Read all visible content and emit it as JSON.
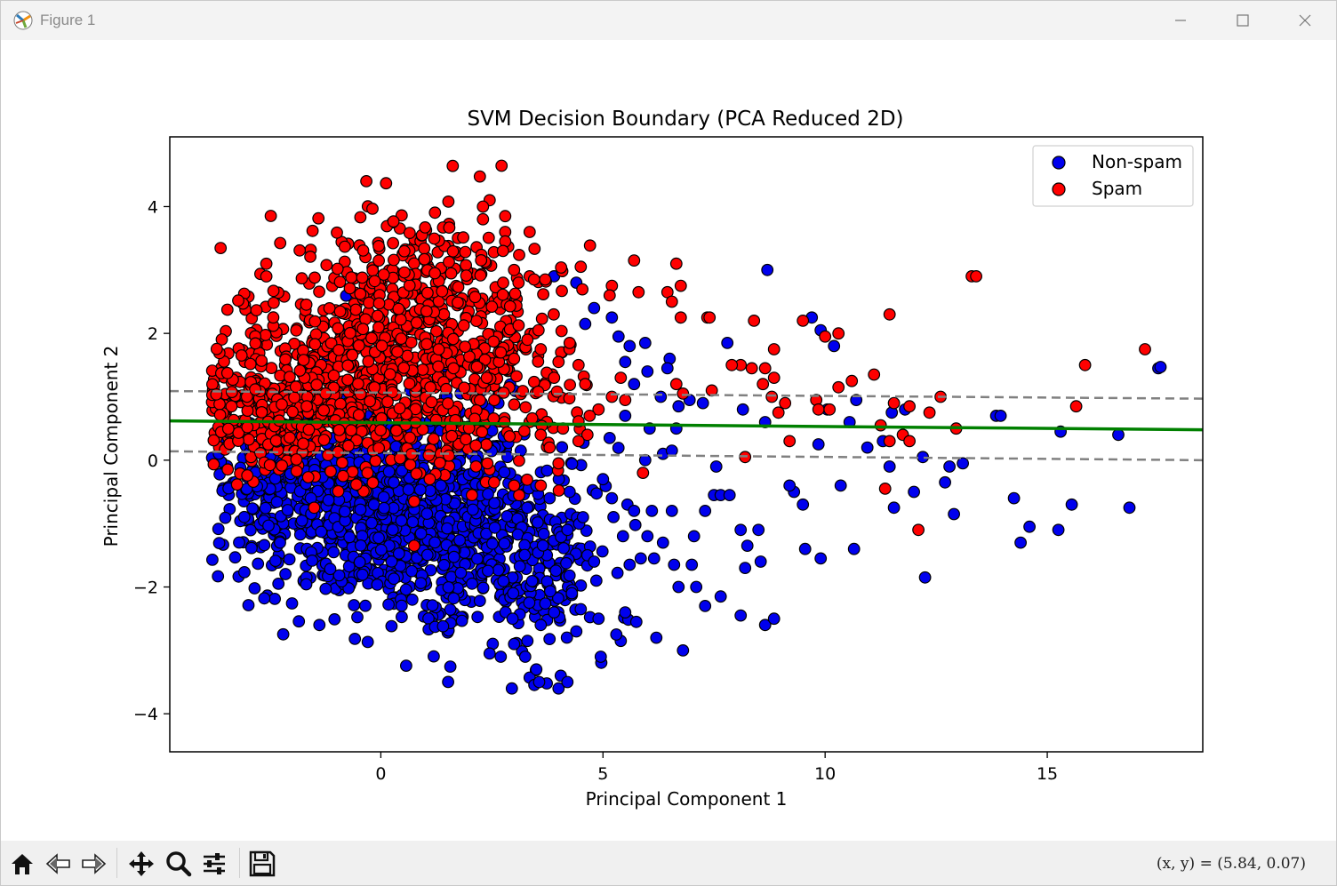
{
  "window": {
    "title": "Figure 1"
  },
  "toolbar": {
    "tools": [
      "home-icon",
      "back-arrow-icon",
      "forward-arrow-icon",
      "pan-icon",
      "zoom-icon",
      "configure-subplots-icon",
      "save-icon"
    ],
    "coords": "(x, y) = (5.84, 0.07)"
  },
  "chart_data": {
    "type": "scatter",
    "title": "SVM Decision Boundary (PCA Reduced 2D)",
    "xlabel": "Principal Component 1",
    "ylabel": "Principal Component 2",
    "xlim": [
      -4.75,
      18.5
    ],
    "ylim": [
      -4.6,
      5.1
    ],
    "xticks": [
      0,
      5,
      10,
      15
    ],
    "yticks": [
      -4,
      -2,
      0,
      2,
      4
    ],
    "grid": false,
    "legend_position": "top-right",
    "colors": {
      "non_spam": "#0000ee",
      "spam": "#ff0000",
      "boundary": "#008000",
      "margin": "#808080"
    },
    "decision_boundary": {
      "x": [
        -4.75,
        18.5
      ],
      "y": [
        0.62,
        0.48
      ]
    },
    "margins": [
      {
        "x": [
          -4.75,
          18.5
        ],
        "y": [
          1.09,
          0.97
        ]
      },
      {
        "x": [
          -4.75,
          18.5
        ],
        "y": [
          0.14,
          0.0
        ]
      }
    ],
    "series": [
      {
        "name": "Non-spam",
        "color": "#0000ee",
        "points": [
          [
            8.7,
            3.0
          ],
          [
            7.8,
            1.85
          ],
          [
            9.7,
            2.25
          ],
          [
            9.9,
            2.05
          ],
          [
            10.2,
            1.8
          ],
          [
            5.5,
            1.55
          ],
          [
            5.95,
            1.85
          ],
          [
            6.0,
            1.4
          ],
          [
            6.5,
            1.6
          ],
          [
            6.45,
            1.45
          ],
          [
            5.7,
            1.2
          ],
          [
            6.3,
            1.0
          ],
          [
            6.7,
            0.85
          ],
          [
            7.25,
            0.9
          ],
          [
            8.15,
            0.8
          ],
          [
            8.65,
            0.6
          ],
          [
            9.85,
            0.25
          ],
          [
            10.05,
            0.8
          ],
          [
            10.55,
            0.6
          ],
          [
            10.7,
            0.95
          ],
          [
            11.5,
            0.75
          ],
          [
            11.8,
            0.8
          ],
          [
            11.45,
            -0.1
          ],
          [
            12.2,
            0.05
          ],
          [
            12.8,
            -0.1
          ],
          [
            12.7,
            -0.35
          ],
          [
            13.1,
            -0.05
          ],
          [
            12.0,
            -0.5
          ],
          [
            12.9,
            -0.85
          ],
          [
            14.25,
            -0.6
          ],
          [
            14.6,
            -1.05
          ],
          [
            14.4,
            -1.3
          ],
          [
            15.25,
            -1.1
          ],
          [
            15.55,
            -0.7
          ],
          [
            16.6,
            0.4
          ],
          [
            16.85,
            -0.75
          ],
          [
            13.85,
            0.7
          ],
          [
            13.95,
            0.7
          ],
          [
            15.3,
            0.45
          ],
          [
            17.5,
            1.45
          ],
          [
            17.55,
            1.47
          ],
          [
            12.25,
            -1.85
          ],
          [
            9.3,
            -0.5
          ],
          [
            9.5,
            -0.7
          ],
          [
            9.2,
            -0.4
          ],
          [
            10.35,
            -0.4
          ],
          [
            10.65,
            -1.4
          ],
          [
            9.9,
            -1.55
          ],
          [
            9.55,
            -1.4
          ],
          [
            11.55,
            -0.75
          ],
          [
            7.5,
            -0.55
          ],
          [
            7.65,
            -0.55
          ],
          [
            7.85,
            -0.55
          ],
          [
            8.1,
            -1.1
          ],
          [
            8.5,
            -1.1
          ],
          [
            8.25,
            -1.35
          ],
          [
            8.2,
            -1.7
          ],
          [
            8.55,
            -1.6
          ],
          [
            7.0,
            -1.65
          ],
          [
            6.6,
            -1.65
          ],
          [
            6.15,
            -1.55
          ],
          [
            6.7,
            -2.0
          ],
          [
            7.1,
            -2.0
          ],
          [
            7.65,
            -2.15
          ],
          [
            7.3,
            -2.3
          ],
          [
            8.1,
            -2.45
          ],
          [
            8.65,
            -2.6
          ],
          [
            8.85,
            -2.5
          ],
          [
            6.2,
            -2.8
          ],
          [
            6.8,
            -3.0
          ],
          [
            5.5,
            -2.4
          ],
          [
            5.75,
            -2.55
          ],
          [
            5.4,
            -2.85
          ],
          [
            5.3,
            -2.75
          ],
          [
            4.95,
            -3.1
          ],
          [
            4.9,
            -2.5
          ],
          [
            4.4,
            -2.7
          ],
          [
            4.0,
            -3.6
          ],
          [
            4.05,
            -3.4
          ],
          [
            2.95,
            -3.6
          ],
          [
            3.5,
            -3.3
          ],
          [
            3.25,
            -3.1
          ],
          [
            4.2,
            -3.5
          ],
          [
            2.45,
            -3.05
          ],
          [
            5.0,
            -0.3
          ],
          [
            5.2,
            -0.6
          ],
          [
            5.55,
            -0.7
          ],
          [
            5.7,
            -0.8
          ],
          [
            6.1,
            -0.8
          ],
          [
            6.55,
            -0.8
          ],
          [
            5.15,
            0.35
          ],
          [
            5.5,
            0.7
          ],
          [
            6.05,
            0.5
          ],
          [
            6.65,
            0.5
          ],
          [
            6.95,
            0.95
          ],
          [
            4.8,
            2.4
          ],
          [
            5.2,
            2.25
          ],
          [
            5.35,
            1.95
          ],
          [
            5.6,
            1.8
          ],
          [
            4.6,
            2.15
          ],
          [
            3.9,
            2.9
          ],
          [
            4.4,
            2.8
          ],
          [
            7.55,
            -0.1
          ],
          [
            7.3,
            -0.8
          ],
          [
            7.05,
            -1.2
          ],
          [
            6.35,
            -1.3
          ],
          [
            6.0,
            -1.2
          ],
          [
            5.85,
            -1.55
          ],
          [
            5.6,
            -1.65
          ],
          [
            5.45,
            -1.2
          ],
          [
            4.85,
            -1.9
          ],
          [
            4.65,
            -1.5
          ],
          [
            4.3,
            -2.1
          ],
          [
            4.5,
            -2.35
          ],
          [
            3.9,
            -2.4
          ],
          [
            3.6,
            -2.6
          ],
          [
            3.3,
            -2.85
          ],
          [
            3.0,
            -2.9
          ],
          [
            2.7,
            -3.1
          ],
          [
            4.8,
            -1.6
          ],
          [
            4.2,
            -1.1
          ],
          [
            4.55,
            -0.9
          ],
          [
            4.25,
            -0.5
          ],
          [
            3.8,
            -0.6
          ],
          [
            3.5,
            -0.4
          ],
          [
            5.95,
            0.0
          ],
          [
            6.35,
            0.1
          ],
          [
            6.55,
            0.15
          ],
          [
            10.95,
            0.2
          ],
          [
            11.3,
            0.3
          ]
        ],
        "clusters": [
          {
            "cx": 0.2,
            "cy": -0.9,
            "sx": 1.6,
            "sy": 0.75,
            "n": 700
          },
          {
            "cx": 2.0,
            "cy": -1.3,
            "sx": 1.3,
            "sy": 0.8,
            "n": 240
          },
          {
            "cx": -1.8,
            "cy": -0.3,
            "sx": 1.0,
            "sy": 0.5,
            "n": 260
          },
          {
            "cx": 3.4,
            "cy": -1.7,
            "sx": 0.8,
            "sy": 0.7,
            "n": 110
          },
          {
            "cx": 1.0,
            "cy": 0.6,
            "sx": 1.2,
            "sy": 0.8,
            "n": 120
          }
        ]
      },
      {
        "name": "Spam",
        "color": "#ff0000",
        "points": [
          [
            2.45,
            4.1
          ],
          [
            2.3,
            4.0
          ],
          [
            2.3,
            3.8
          ],
          [
            2.8,
            3.85
          ],
          [
            3.35,
            3.6
          ],
          [
            2.8,
            3.6
          ],
          [
            2.8,
            3.45
          ],
          [
            2.75,
            3.3
          ],
          [
            3.0,
            3.0
          ],
          [
            3.1,
            2.8
          ],
          [
            3.35,
            2.9
          ],
          [
            3.45,
            2.85
          ],
          [
            3.7,
            2.85
          ],
          [
            4.5,
            3.05
          ],
          [
            5.2,
            2.75
          ],
          [
            5.15,
            2.6
          ],
          [
            5.7,
            3.15
          ],
          [
            6.65,
            3.1
          ],
          [
            6.75,
            2.75
          ],
          [
            5.8,
            2.65
          ],
          [
            6.45,
            2.65
          ],
          [
            6.55,
            2.5
          ],
          [
            6.75,
            2.25
          ],
          [
            7.35,
            2.25
          ],
          [
            7.4,
            2.25
          ],
          [
            8.4,
            2.2
          ],
          [
            9.5,
            2.2
          ],
          [
            10.0,
            1.95
          ],
          [
            10.3,
            2.0
          ],
          [
            8.85,
            1.75
          ],
          [
            8.1,
            1.5
          ],
          [
            7.9,
            1.5
          ],
          [
            8.35,
            1.45
          ],
          [
            8.65,
            1.45
          ],
          [
            8.85,
            1.3
          ],
          [
            8.6,
            1.2
          ],
          [
            8.8,
            1.0
          ],
          [
            7.45,
            1.1
          ],
          [
            6.65,
            1.2
          ],
          [
            6.8,
            1.05
          ],
          [
            11.45,
            2.3
          ],
          [
            11.1,
            1.35
          ],
          [
            10.6,
            1.25
          ],
          [
            10.3,
            1.15
          ],
          [
            9.8,
            0.95
          ],
          [
            9.85,
            0.8
          ],
          [
            10.1,
            0.8
          ],
          [
            9.1,
            0.9
          ],
          [
            8.95,
            0.75
          ],
          [
            11.25,
            0.55
          ],
          [
            11.55,
            0.9
          ],
          [
            11.9,
            0.85
          ],
          [
            12.35,
            0.75
          ],
          [
            12.6,
            1.0
          ],
          [
            12.95,
            0.5
          ],
          [
            11.45,
            0.3
          ],
          [
            11.75,
            0.4
          ],
          [
            11.9,
            0.3
          ],
          [
            13.3,
            2.9
          ],
          [
            13.4,
            2.9
          ],
          [
            17.2,
            1.75
          ],
          [
            15.85,
            1.5
          ],
          [
            15.65,
            0.85
          ],
          [
            11.35,
            -0.45
          ],
          [
            12.1,
            -1.1
          ],
          [
            9.2,
            0.3
          ],
          [
            8.2,
            0.05
          ],
          [
            5.9,
            -0.2
          ],
          [
            4.0,
            -0.05
          ],
          [
            2.4,
            -0.05
          ],
          [
            5.4,
            1.3
          ],
          [
            5.2,
            1.0
          ],
          [
            5.5,
            0.95
          ],
          [
            4.9,
            0.8
          ],
          [
            4.7,
            0.7
          ],
          [
            4.65,
            0.4
          ],
          [
            4.45,
            0.3
          ],
          [
            4.1,
            0.5
          ],
          [
            3.8,
            0.2
          ],
          [
            3.6,
            0.4
          ],
          [
            4.45,
            1.5
          ],
          [
            4.6,
            1.2
          ],
          [
            3.9,
            1.3
          ],
          [
            4.0,
            1.55
          ],
          [
            4.25,
            1.85
          ],
          [
            3.55,
            2.05
          ],
          [
            3.3,
            1.9
          ],
          [
            3.6,
            1.75
          ],
          [
            3.0,
            1.6
          ],
          [
            2.7,
            1.7
          ],
          [
            0.75,
            -0.65
          ],
          [
            0.75,
            -1.35
          ],
          [
            -1.5,
            -0.75
          ],
          [
            -0.85,
            -0.25
          ],
          [
            -0.3,
            -0.2
          ],
          [
            2.05,
            -0.55
          ],
          [
            2.55,
            -0.35
          ],
          [
            3.0,
            -0.4
          ],
          [
            3.6,
            -0.4
          ],
          [
            1.1,
            -0.3
          ]
        ],
        "clusters": [
          {
            "cx": -0.2,
            "cy": 1.5,
            "sx": 1.7,
            "sy": 0.75,
            "n": 600
          },
          {
            "cx": 0.5,
            "cy": 2.9,
            "sx": 1.1,
            "sy": 0.6,
            "n": 170
          },
          {
            "cx": -2.6,
            "cy": 0.7,
            "sx": 0.8,
            "sy": 0.45,
            "n": 170
          },
          {
            "cx": 2.2,
            "cy": 1.7,
            "sx": 1.0,
            "sy": 0.9,
            "n": 150
          },
          {
            "cx": -0.2,
            "cy": 0.3,
            "sx": 1.6,
            "sy": 0.35,
            "n": 90
          }
        ]
      }
    ]
  }
}
